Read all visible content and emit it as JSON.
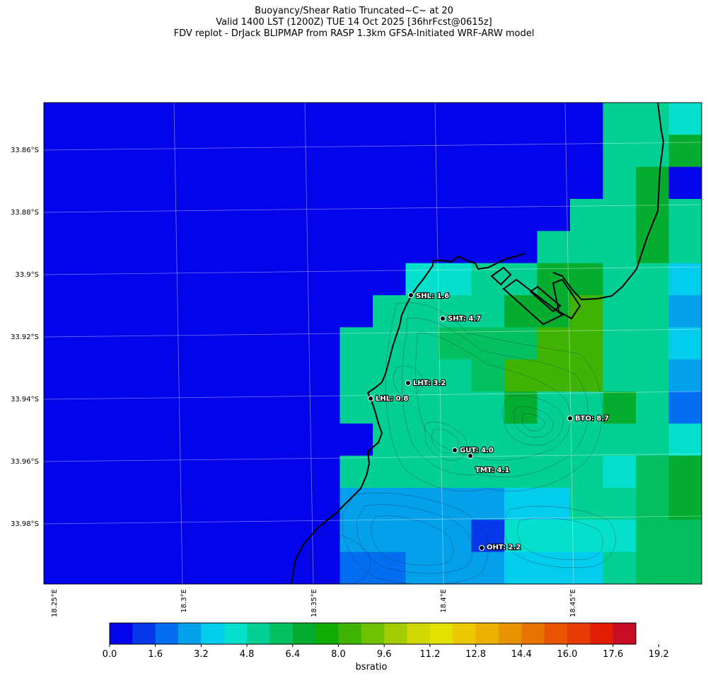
{
  "header": {
    "line1": "Buoyancy/Shear Ratio Truncated~C~    at 20",
    "line2": "Valid 1400 LST (1200Z) TUE 14 Oct 2025 [36hrFcst@0615z]",
    "line3": "FDV replot - DrJack BLIPMAP from RASP 1.3km GFSA-Initiated WRF-ARW model"
  },
  "axes": {
    "lat_labels": [
      "33.86°S",
      "33.88°S",
      "33.9°S",
      "33.92°S",
      "33.94°S",
      "33.96°S",
      "33.98°S"
    ],
    "lon_labels": [
      "18.25°E",
      "18.3°E",
      "18.35°E",
      "18.4°E",
      "18.45°E"
    ]
  },
  "stations": [
    {
      "label": "SHL: 1.6",
      "value": 1.6
    },
    {
      "label": "SHT: 4.7",
      "value": 4.7
    },
    {
      "label": "LHT: 3.2",
      "value": 3.2
    },
    {
      "label": "LHL: 0.8",
      "value": 0.8
    },
    {
      "label": "BTO: 8.7",
      "value": 8.7
    },
    {
      "label": "GUT: 4.0",
      "value": 4.0
    },
    {
      "label": "TMT: 4.1",
      "value": 4.1
    },
    {
      "label": "OHT: 2.2",
      "value": 2.2
    }
  ],
  "colorbar": {
    "title": "bsratio",
    "ticks": [
      "0.0",
      "1.6",
      "3.2",
      "4.8",
      "6.4",
      "8.0",
      "9.6",
      "11.2",
      "12.8",
      "14.4",
      "16.0",
      "17.6",
      "19.2"
    ],
    "colors": [
      "#0404ea",
      "#0438e8",
      "#046ef0",
      "#04a0ea",
      "#04ccec",
      "#04e0cc",
      "#04d094",
      "#04c060",
      "#04ac30",
      "#10ac04",
      "#40b404",
      "#70c004",
      "#a4cc04",
      "#d0d804",
      "#e4e000",
      "#ecc800",
      "#ecb000",
      "#e89400",
      "#e87400",
      "#e85400",
      "#e43c04",
      "#e01c04",
      "#c80c24"
    ]
  },
  "map": {
    "cell_colors": {
      "0": "#0404ea",
      "1": "#0438e8",
      "2": "#046ef0",
      "3": "#04a0ea",
      "4": "#04ccec",
      "5": "#04e0cc",
      "6": "#04d094",
      "7": "#04c060",
      "8": "#04ac30",
      "9": "#40b404",
      "a": "#70c004"
    },
    "grid_rows": [
      "00000000000000000665",
      "00000000000000000668",
      "00000000000000000680",
      "00000000000000006686",
      "00000000000000066686",
      "00000000000556688664",
      "00000000006666889663",
      "00000000066677799664",
      "00000000066667999663",
      "00000000066666866862",
      "00000000006666666665",
      "00000000066666666578",
      "00000000033333446678",
      "00000000033331555577",
      "00000000022333444677"
    ]
  }
}
